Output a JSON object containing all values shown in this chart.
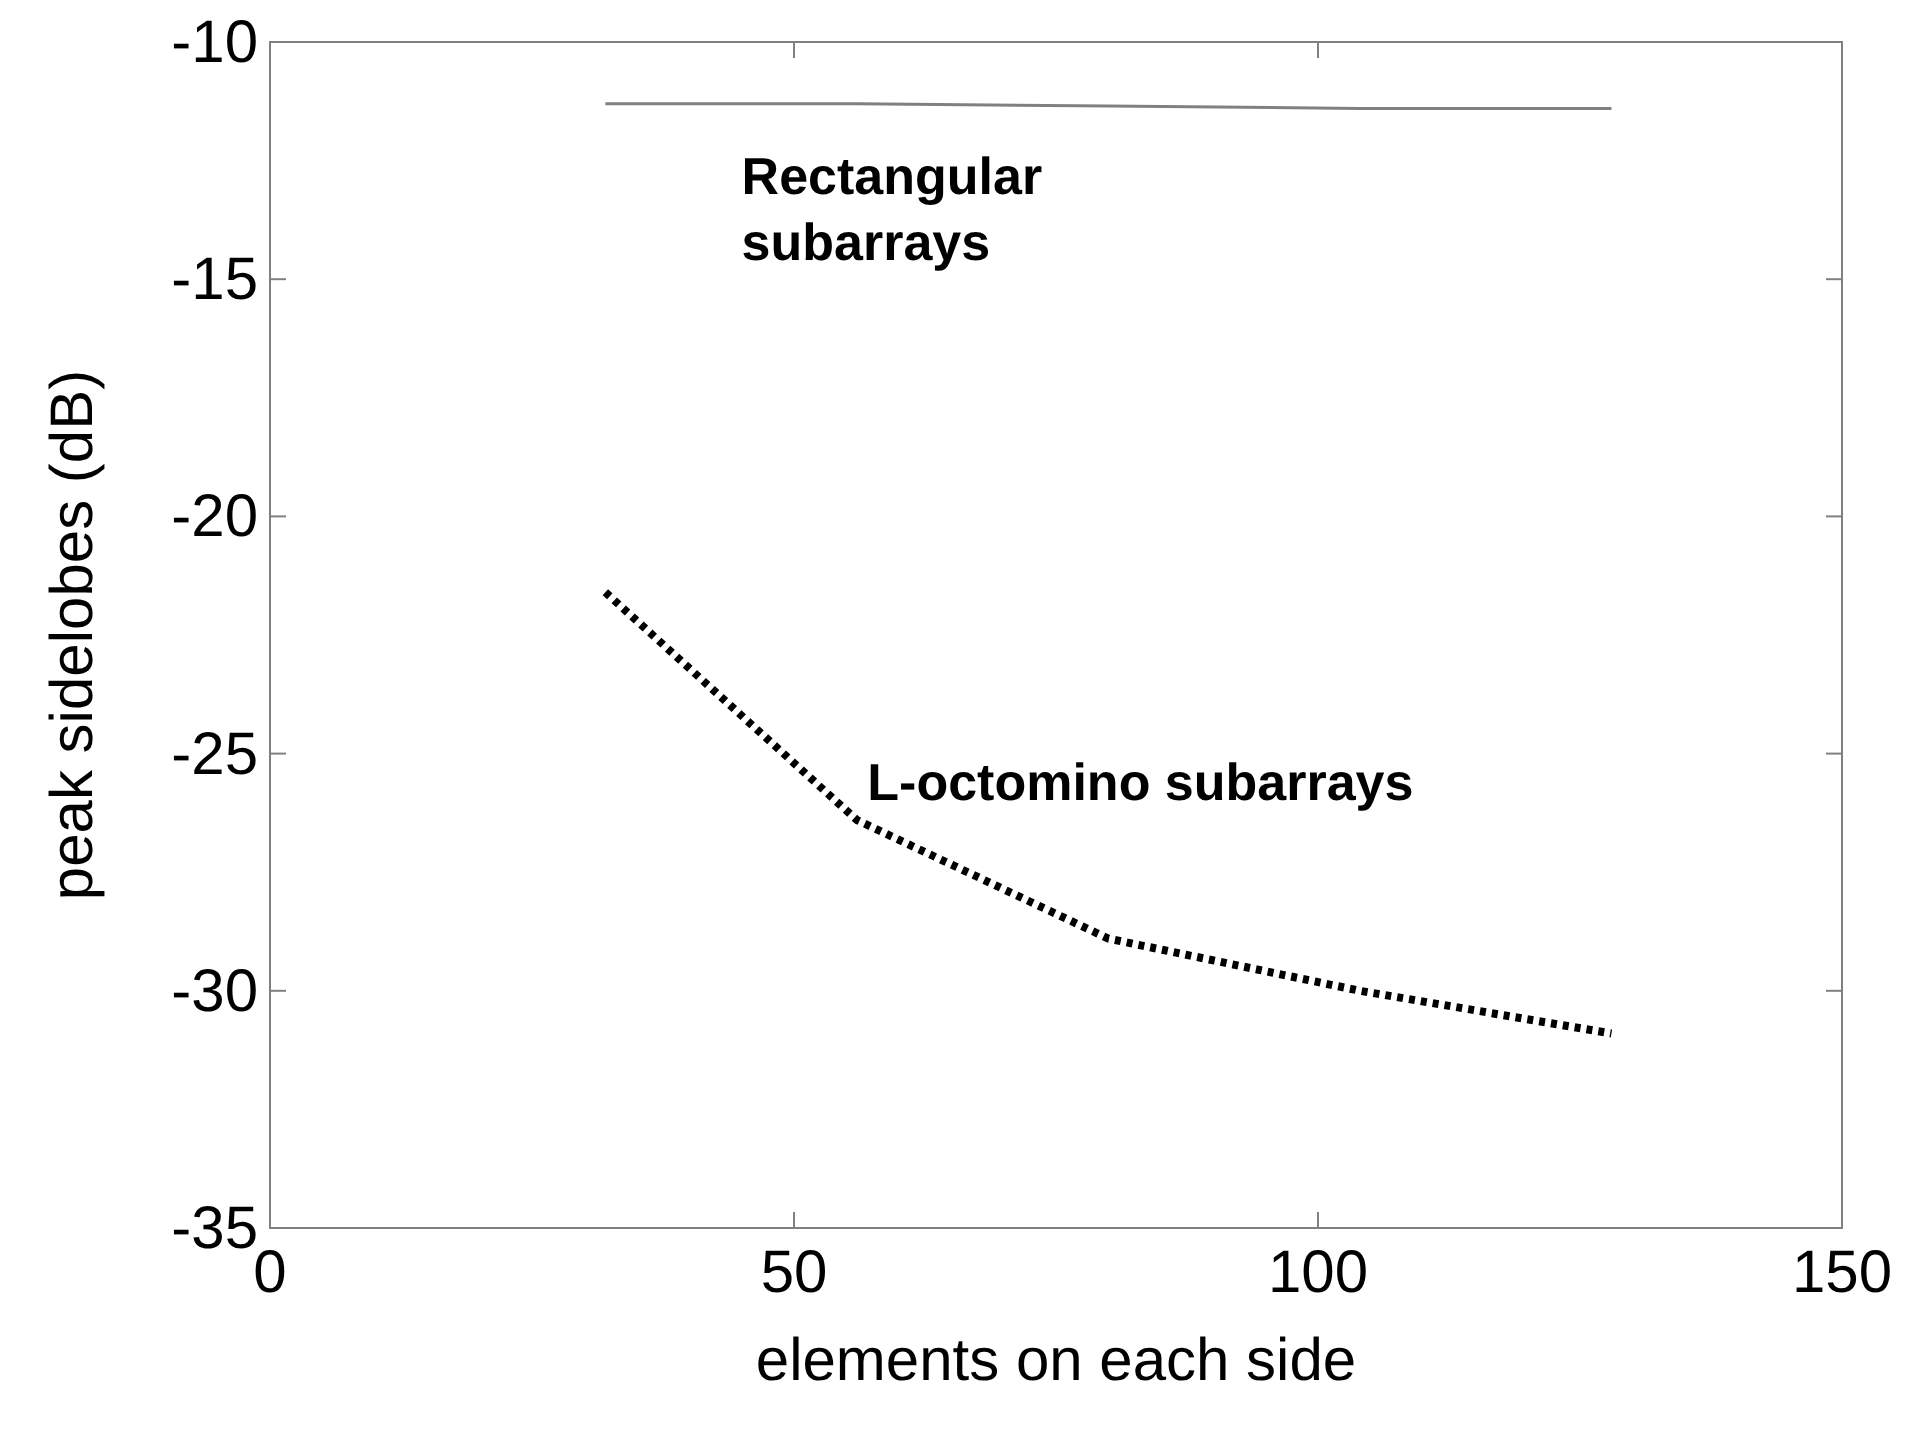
{
  "chart_data": {
    "type": "line",
    "xlabel": "elements on each side",
    "ylabel": "peak sidelobes (dB)",
    "xlim": [
      0,
      150
    ],
    "ylim": [
      -35,
      -10
    ],
    "xticks": [
      0,
      50,
      100,
      150
    ],
    "yticks": [
      -35,
      -30,
      -25,
      -20,
      -15,
      -10
    ],
    "x": [
      32,
      56,
      80,
      104,
      128
    ],
    "grid": false,
    "series": [
      {
        "name": "Rectangular subarrays",
        "color": "#808080",
        "line_style": "solid",
        "values": [
          -11.3,
          -11.3,
          -11.35,
          -11.4,
          -11.4
        ]
      },
      {
        "name": "L-octomino subarrays",
        "color": "#000000",
        "line_style": "dotted",
        "values": [
          -21.6,
          -26.4,
          -28.9,
          -30.0,
          -30.9
        ]
      }
    ]
  }
}
